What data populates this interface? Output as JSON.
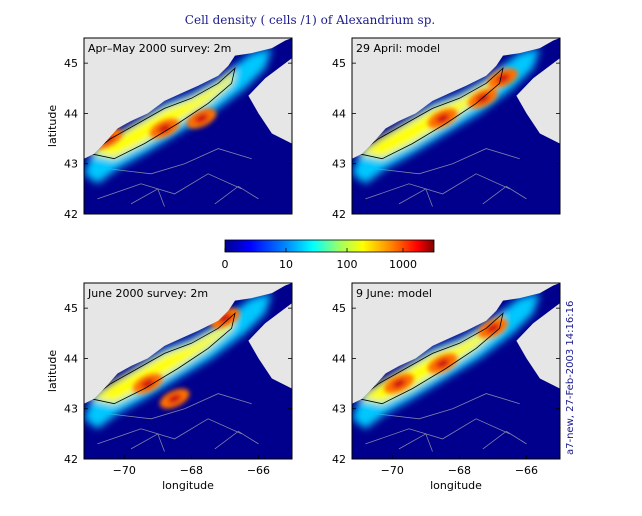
{
  "figure": {
    "title": "Cell density ( cells /1) of Alexandrium sp.",
    "stamp": "a7-new, 27-Feb-2003 14:16:16"
  },
  "colors": {
    "land": "#e6e6e6",
    "deep": "#00008c",
    "contour": "#000000",
    "bathy": "#8080aa",
    "frame": "#000000"
  },
  "colorbar": {
    "scale": "log",
    "ticks": [
      "0",
      "10",
      "100",
      "1000"
    ],
    "colormap": [
      "#00008f",
      "#0000ff",
      "#0080ff",
      "#00ffff",
      "#80ff80",
      "#ffff00",
      "#ff8000",
      "#ff0000",
      "#800000"
    ]
  },
  "chart_data": [
    {
      "type": "heatmap",
      "panel_label": "Apr–May 2000 survey: 2m",
      "xlim": [
        -71.2,
        -65.0
      ],
      "ylim": [
        42,
        45.5
      ],
      "yticks": [
        "42",
        "43",
        "44",
        "45"
      ],
      "ylabel": "latitude",
      "xlabel": "",
      "xticks": [],
      "hotspots": [
        [
          -70.5,
          43.5
        ],
        [
          -68.8,
          43.7
        ],
        [
          -67.7,
          43.9
        ]
      ],
      "level": "patchy 10–1000 cells/l"
    },
    {
      "type": "heatmap",
      "panel_label": "29 April: model",
      "xlim": [
        -71.2,
        -65.0
      ],
      "ylim": [
        42,
        45.5
      ],
      "yticks": [
        "42",
        "43",
        "44",
        "45"
      ],
      "ylabel": "",
      "xlabel": "",
      "xticks": [],
      "hotspots": [
        [
          -68.5,
          43.9
        ],
        [
          -67.3,
          44.3
        ],
        [
          -66.7,
          44.7
        ]
      ],
      "level": "100–1000 cells/l along coast"
    },
    {
      "type": "heatmap",
      "panel_label": "June 2000 survey: 2m",
      "xlim": [
        -71.2,
        -65.0
      ],
      "ylim": [
        42,
        45.5
      ],
      "yticks": [
        "42",
        "43",
        "44",
        "45"
      ],
      "ylabel": "latitude",
      "xlabel": "longitude",
      "xticks": [
        "−70",
        "−68",
        "−66"
      ],
      "hotspots": [
        [
          -69.3,
          43.5
        ],
        [
          -68.5,
          43.2
        ],
        [
          -67.0,
          44.8
        ]
      ],
      "level": "100–1000 cells/l"
    },
    {
      "type": "heatmap",
      "panel_label": "9 June: model",
      "xlim": [
        -71.2,
        -65.0
      ],
      "ylim": [
        42,
        45.5
      ],
      "yticks": [
        "42",
        "43",
        "44",
        "45"
      ],
      "ylabel": "",
      "xlabel": "longitude",
      "xticks": [
        "−70",
        "−68",
        "−66"
      ],
      "hotspots": [
        [
          -69.8,
          43.5
        ],
        [
          -68.5,
          43.9
        ],
        [
          -67.0,
          44.6
        ]
      ],
      "level": "100–1000 cells/l, broad coastal band"
    }
  ]
}
